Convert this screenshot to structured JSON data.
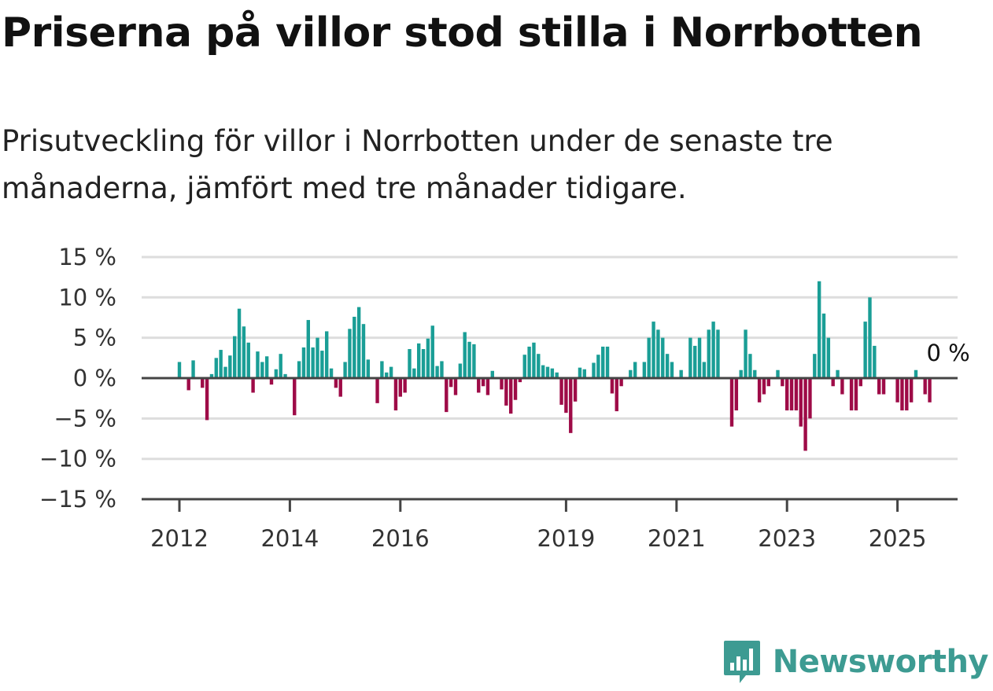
{
  "title": "Priserna på villor stod stilla i Norrbotten",
  "subtitle": "Prisutveckling för villor i Norrbotten under de senaste tre månaderna, jämfört med tre månader tidigare.",
  "brand": {
    "name": "Newsworthy"
  },
  "colors": {
    "positive": "#1a9e96",
    "negative": "#9e0b47",
    "grid": "#dddddd",
    "axis": "#444444"
  },
  "chart_data": {
    "type": "bar",
    "x_start": "2012-01",
    "x_tick_labels": [
      "2012",
      "2014",
      "2016",
      "2019",
      "2021",
      "2023",
      "2025"
    ],
    "y_tick_labels": [
      "15 %",
      "10 %",
      "5 %",
      "0 %",
      "−5 %",
      "−10 %",
      "−15 %"
    ],
    "ylim": [
      -15,
      15
    ],
    "yticks": [
      15,
      10,
      5,
      0,
      -5,
      -10,
      -15
    ],
    "grid": true,
    "annotation": {
      "text": "0 %",
      "value": 0
    },
    "values": [
      2,
      0,
      -1.5,
      2.2,
      0,
      -1.2,
      -5.2,
      0.5,
      2.5,
      3.5,
      1.4,
      2.8,
      5.2,
      8.6,
      6.4,
      4.4,
      -1.8,
      3.3,
      2.0,
      2.7,
      -0.8,
      1.1,
      3.0,
      0.5,
      0,
      -4.6,
      2.1,
      3.8,
      7.2,
      3.8,
      5.0,
      3.4,
      5.8,
      1.2,
      -1.2,
      -2.3,
      2.0,
      6.1,
      7.6,
      8.8,
      6.7,
      2.3,
      0,
      -3.1,
      2.1,
      0.7,
      1.4,
      -4.0,
      -2.3,
      -1.8,
      3.6,
      1.2,
      4.3,
      3.6,
      4.9,
      6.5,
      1.5,
      2.1,
      -4.2,
      -1.1,
      -2.1,
      1.8,
      5.7,
      4.5,
      4.2,
      -1.8,
      -1.0,
      -2.1,
      0.9,
      0,
      -1.4,
      -3.4,
      -4.4,
      -2.7,
      -0.5,
      2.9,
      3.9,
      4.4,
      3.0,
      1.6,
      1.4,
      1.2,
      0.7,
      -3.3,
      -4.3,
      -6.8,
      -2.9,
      1.3,
      1.1,
      0,
      1.9,
      2.9,
      3.9,
      3.9,
      -1.9,
      -4.1,
      -1.0,
      0,
      1.0,
      2.0,
      0,
      2.0,
      5.0,
      7.0,
      6.0,
      5.0,
      3.0,
      2.0,
      0,
      1.0,
      0,
      5.0,
      4.0,
      5.0,
      2.0,
      6.0,
      7.0,
      6.0,
      0,
      0,
      -6.0,
      -4.0,
      1.0,
      6.0,
      3.0,
      1.0,
      -3.0,
      -2.0,
      -1.0,
      0,
      1.0,
      -1.0,
      -4.0,
      -4.0,
      -4.0,
      -6.0,
      -9.0,
      -5.0,
      3.0,
      12.0,
      8.0,
      5.0,
      -1.0,
      1.0,
      -2.0,
      0,
      -4.0,
      -4.0,
      -1.0,
      7.0,
      10.0,
      4.0,
      -2.0,
      -2.0,
      0,
      0,
      -3.0,
      -4.0,
      -4.0,
      -3.0,
      1.0,
      0,
      -2.0,
      -3.0,
      0,
      0,
      0
    ]
  }
}
